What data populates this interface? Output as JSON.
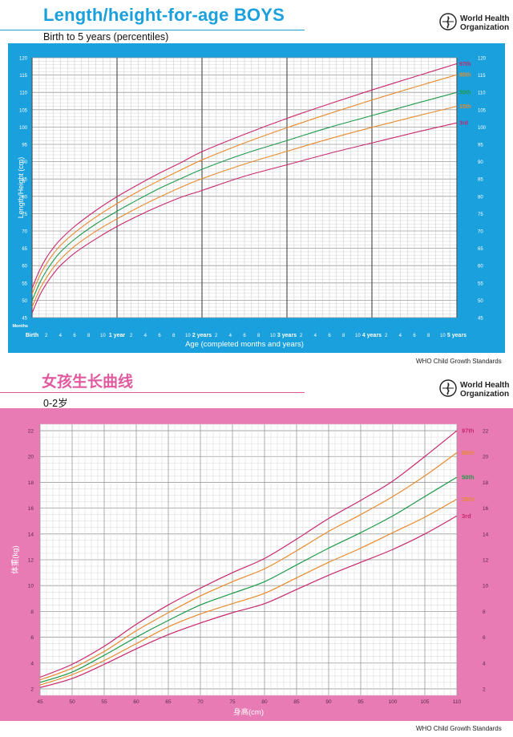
{
  "top": {
    "title": "Length/height-for-age BOYS",
    "subtitle": "Birth to 5 years (percentiles)",
    "who_line1": "World Health",
    "who_line2": "Organization",
    "source": "WHO Child Growth Standards"
  },
  "bottom": {
    "title": "女孩生长曲线",
    "subtitle": "0-2岁",
    "who_line1": "World Health",
    "who_line2": "Organization",
    "source": "WHO Child Growth Standards"
  },
  "colors": {
    "blue_frame": "#1aa0dc",
    "pink_frame": "#e87bb4",
    "p97": "#c8286e",
    "p85": "#e88a2e",
    "p50": "#1e9a4a",
    "p15": "#e88a2e",
    "p3": "#c8286e"
  },
  "chart_data": [
    {
      "type": "line",
      "title": "Length/height-for-age BOYS",
      "subtitle": "Birth to 5 years (percentiles)",
      "xlabel": "Age (completed months and years)",
      "ylabel": "Length/Height (cm)",
      "x_unit_label": "Months",
      "xlim": [
        0,
        60
      ],
      "ylim": [
        45,
        120
      ],
      "y_ticks": [
        45,
        50,
        55,
        60,
        65,
        70,
        75,
        80,
        85,
        90,
        95,
        100,
        105,
        110,
        115,
        120
      ],
      "x_tick_labels": [
        {
          "x": 0,
          "label": "Birth"
        },
        {
          "x": 2,
          "label": "2"
        },
        {
          "x": 4,
          "label": "4"
        },
        {
          "x": 6,
          "label": "6"
        },
        {
          "x": 8,
          "label": "8"
        },
        {
          "x": 10,
          "label": "10"
        },
        {
          "x": 12,
          "label": "1 year"
        },
        {
          "x": 14,
          "label": "2"
        },
        {
          "x": 16,
          "label": "4"
        },
        {
          "x": 18,
          "label": "6"
        },
        {
          "x": 20,
          "label": "8"
        },
        {
          "x": 22,
          "label": "10"
        },
        {
          "x": 24,
          "label": "2 years"
        },
        {
          "x": 26,
          "label": "2"
        },
        {
          "x": 28,
          "label": "4"
        },
        {
          "x": 30,
          "label": "6"
        },
        {
          "x": 32,
          "label": "8"
        },
        {
          "x": 34,
          "label": "10"
        },
        {
          "x": 36,
          "label": "3 years"
        },
        {
          "x": 38,
          "label": "2"
        },
        {
          "x": 40,
          "label": "4"
        },
        {
          "x": 42,
          "label": "6"
        },
        {
          "x": 44,
          "label": "8"
        },
        {
          "x": 46,
          "label": "10"
        },
        {
          "x": 48,
          "label": "4 years"
        },
        {
          "x": 50,
          "label": "2"
        },
        {
          "x": 52,
          "label": "4"
        },
        {
          "x": 54,
          "label": "6"
        },
        {
          "x": 56,
          "label": "8"
        },
        {
          "x": 58,
          "label": "10"
        },
        {
          "x": 60,
          "label": "5 years"
        }
      ],
      "x": [
        0,
        1,
        2,
        3,
        4,
        6,
        9,
        12,
        15,
        18,
        21,
        24,
        30,
        36,
        42,
        48,
        54,
        60
      ],
      "series": [
        {
          "name": "97th",
          "color_key": "p97",
          "values": [
            53.4,
            58.4,
            62.2,
            65.1,
            67.5,
            71.3,
            75.9,
            79.9,
            83.4,
            86.7,
            89.7,
            92.9,
            97.9,
            102.5,
            106.7,
            110.7,
            114.5,
            118.3
          ]
        },
        {
          "name": "85th",
          "color_key": "p85",
          "values": [
            51.8,
            56.7,
            60.4,
            63.4,
            65.8,
            69.5,
            74.0,
            77.9,
            81.4,
            84.6,
            87.6,
            90.5,
            95.4,
            99.8,
            103.9,
            107.8,
            111.5,
            115.1
          ]
        },
        {
          "name": "50th",
          "color_key": "p50",
          "values": [
            49.9,
            54.7,
            58.4,
            61.4,
            63.9,
            67.6,
            72.0,
            75.7,
            79.1,
            82.3,
            85.1,
            87.8,
            92.3,
            96.1,
            99.9,
            103.3,
            106.7,
            110.0
          ]
        },
        {
          "name": "15th",
          "color_key": "p15",
          "values": [
            48.0,
            52.8,
            56.4,
            59.4,
            61.8,
            65.6,
            69.9,
            73.5,
            76.8,
            79.8,
            82.6,
            85.1,
            89.3,
            93.0,
            96.6,
            99.9,
            103.0,
            106.0
          ]
        },
        {
          "name": "3rd",
          "color_key": "p3",
          "values": [
            46.3,
            51.1,
            54.7,
            57.6,
            60.0,
            63.6,
            67.7,
            71.3,
            74.4,
            77.2,
            79.7,
            81.7,
            85.8,
            89.1,
            92.4,
            95.4,
            98.4,
            101.2
          ]
        }
      ]
    },
    {
      "type": "line",
      "title": "女孩生长曲线",
      "subtitle": "0-2岁",
      "xlabel": "身高(cm)",
      "ylabel": "体重(kg)",
      "xlim": [
        45,
        110
      ],
      "ylim": [
        1.5,
        22.5
      ],
      "y_ticks": [
        2,
        4,
        6,
        8,
        10,
        12,
        14,
        16,
        18,
        20,
        22
      ],
      "x_ticks": [
        45,
        50,
        55,
        60,
        65,
        70,
        75,
        80,
        85,
        90,
        95,
        100,
        105,
        110
      ],
      "x": [
        45,
        50,
        55,
        60,
        65,
        70,
        75,
        80,
        85,
        90,
        95,
        100,
        105,
        110
      ],
      "series": [
        {
          "name": "97th",
          "color_key": "p97",
          "values": [
            2.9,
            3.9,
            5.3,
            7.0,
            8.5,
            9.8,
            11.0,
            12.1,
            13.6,
            15.2,
            16.6,
            18.1,
            20.0,
            22.0
          ]
        },
        {
          "name": "85th",
          "color_key": "p85",
          "values": [
            2.7,
            3.6,
            4.9,
            6.5,
            7.9,
            9.2,
            10.3,
            11.3,
            12.7,
            14.2,
            15.5,
            16.9,
            18.5,
            20.3
          ]
        },
        {
          "name": "50th",
          "color_key": "p50",
          "values": [
            2.5,
            3.3,
            4.6,
            6.0,
            7.3,
            8.5,
            9.4,
            10.3,
            11.6,
            12.9,
            14.1,
            15.4,
            16.9,
            18.4
          ]
        },
        {
          "name": "15th",
          "color_key": "p15",
          "values": [
            2.3,
            3.1,
            4.2,
            5.5,
            6.8,
            7.8,
            8.6,
            9.4,
            10.6,
            11.8,
            12.9,
            14.1,
            15.3,
            16.7
          ]
        },
        {
          "name": "3rd",
          "color_key": "p3",
          "values": [
            2.1,
            2.8,
            3.9,
            5.1,
            6.2,
            7.1,
            7.9,
            8.6,
            9.7,
            10.8,
            11.8,
            12.8,
            14.0,
            15.4
          ]
        }
      ]
    }
  ]
}
